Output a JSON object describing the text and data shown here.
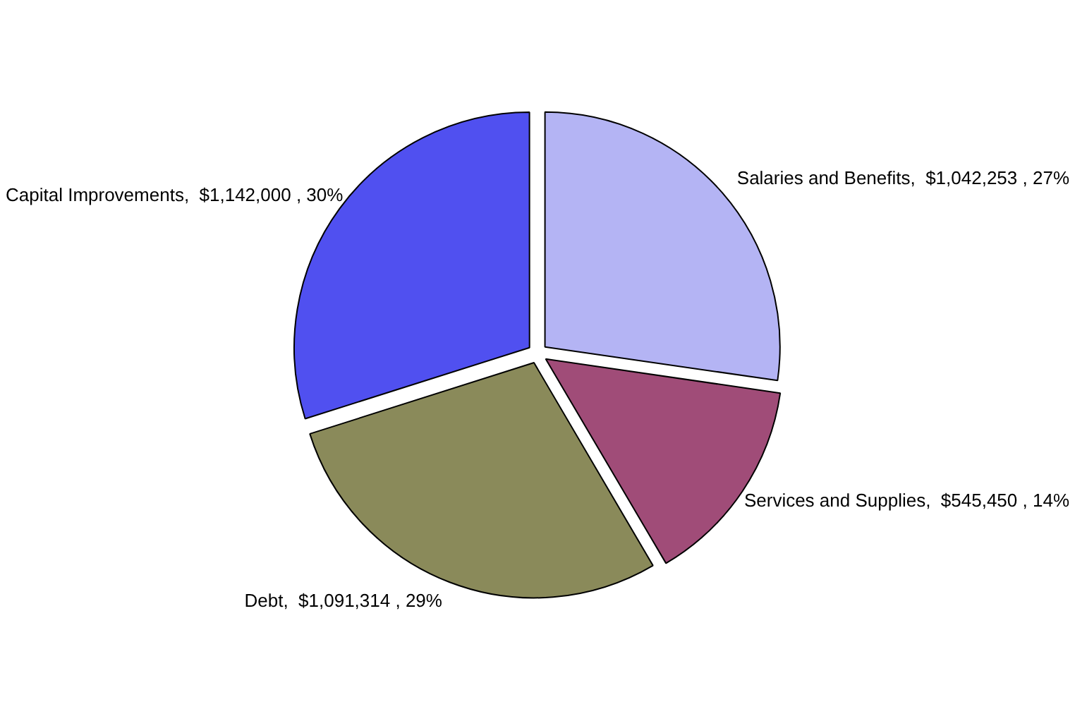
{
  "chart_data": {
    "type": "pie",
    "categories": [
      "Salaries and Benefits",
      "Services and Supplies",
      "Debt",
      "Capital Improvements"
    ],
    "values": [
      1042253,
      545450,
      1091314,
      1142000
    ],
    "value_labels": [
      "$1,042,253 , 27%",
      "$545,450 , 14%",
      "$1,091,314 , 29%",
      "$1,142,000 , 30%"
    ],
    "colors": [
      "#b4b4f4",
      "#a04c78",
      "#8a8a5a",
      "#5050f0"
    ],
    "legend": false
  }
}
